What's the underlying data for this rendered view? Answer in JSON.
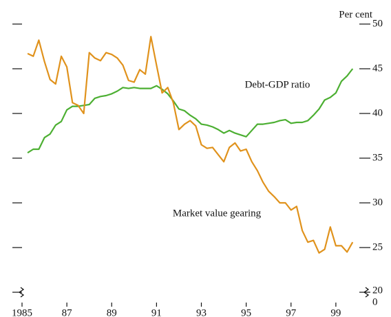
{
  "chart_data": {
    "type": "line",
    "y_axis_label": "Per cent",
    "axis_break_label": "0",
    "annotations": [
      "Debt-GDP ratio",
      "Market value gearing"
    ],
    "x": [
      1985.25,
      1985.5,
      1985.75,
      1986,
      1986.25,
      1986.5,
      1986.75,
      1987,
      1987.25,
      1987.5,
      1987.75,
      1988,
      1988.25,
      1988.5,
      1988.75,
      1989,
      1989.25,
      1989.5,
      1989.75,
      1990,
      1990.25,
      1990.5,
      1990.75,
      1991,
      1991.25,
      1991.5,
      1991.75,
      1992,
      1992.25,
      1992.5,
      1992.75,
      1993,
      1993.25,
      1993.5,
      1993.75,
      1994,
      1994.25,
      1994.5,
      1994.75,
      1995,
      1995.25,
      1995.5,
      1995.75,
      1996,
      1996.25,
      1996.5,
      1996.75,
      1997,
      1997.25,
      1997.5,
      1997.75,
      1998,
      1998.25,
      1998.5,
      1998.75,
      1999,
      1999.25,
      1999.5,
      1999.75
    ],
    "series": [
      {
        "name": "Debt-GDP ratio",
        "color": "#4caf32",
        "values": [
          35.6,
          36.0,
          36.0,
          37.3,
          37.7,
          38.7,
          39.1,
          40.4,
          40.8,
          40.8,
          40.9,
          41.0,
          41.7,
          41.9,
          42.0,
          42.2,
          42.5,
          42.9,
          42.8,
          42.9,
          42.8,
          42.8,
          42.8,
          43.1,
          42.7,
          42.2,
          41.4,
          40.5,
          40.3,
          39.8,
          39.4,
          38.8,
          38.7,
          38.5,
          38.2,
          37.8,
          38.1,
          37.8,
          37.6,
          37.4,
          38.1,
          38.8,
          38.8,
          38.9,
          39.0,
          39.2,
          39.3,
          38.9,
          39.0,
          39.0,
          39.2,
          39.8,
          40.5,
          41.5,
          41.8,
          42.3,
          43.6,
          44.2,
          45.0
        ]
      },
      {
        "name": "Market value gearing",
        "color": "#e0921c",
        "values": [
          46.7,
          46.4,
          48.2,
          45.8,
          43.8,
          43.3,
          46.4,
          45.2,
          41.2,
          40.9,
          40.0,
          46.8,
          46.2,
          45.9,
          46.8,
          46.6,
          46.2,
          45.4,
          43.7,
          43.5,
          44.9,
          44.4,
          48.6,
          45.4,
          42.3,
          42.9,
          41.2,
          38.2,
          38.8,
          39.2,
          38.6,
          36.5,
          36.1,
          36.2,
          35.4,
          34.6,
          36.2,
          36.7,
          35.8,
          36.0,
          34.6,
          33.6,
          32.3,
          31.3,
          30.7,
          30.0,
          30.0,
          29.2,
          29.6,
          26.9,
          25.6,
          25.8,
          24.4,
          24.8,
          27.3,
          25.2,
          25.2,
          24.5,
          25.6
        ]
      }
    ],
    "xlim": [
      1985,
      2000.6
    ],
    "ylim": [
      20,
      50
    ],
    "xticks": [
      {
        "value": 1985,
        "label": "1985"
      },
      {
        "value": 1987,
        "label": "87"
      },
      {
        "value": 1989,
        "label": "89"
      },
      {
        "value": 1991,
        "label": "91"
      },
      {
        "value": 1993,
        "label": "93"
      },
      {
        "value": 1995,
        "label": "95"
      },
      {
        "value": 1997,
        "label": "97"
      },
      {
        "value": 1999,
        "label": "99"
      }
    ],
    "yticks": [
      20,
      25,
      30,
      35,
      40,
      45,
      50
    ]
  }
}
